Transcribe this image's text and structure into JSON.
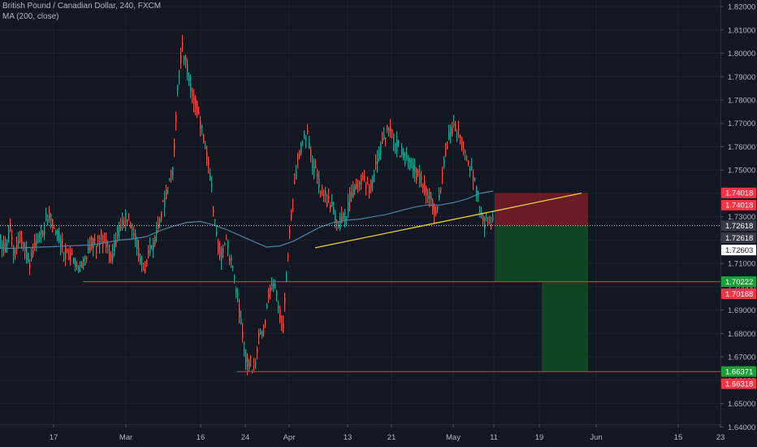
{
  "header": {
    "title": "British Pound / Canadian Dollar, 240, FXCM",
    "indicator": "MA (200, close)"
  },
  "colors": {
    "background": "#131722",
    "grid": "#1e2230",
    "up_candle": "#26a69a",
    "down_candle": "#ef5350",
    "ma_line": "#4e7fa6",
    "trendline": "#e8d13b",
    "horizontal_level": "#f23645",
    "stop_zone": "#7a1c26",
    "target_zone": "#0f4a22",
    "axis_text": "#b2b5be",
    "label_red": "#f23645",
    "label_green": "#1e9e3a",
    "label_white": "#ffffff",
    "label_dark": "#363a45"
  },
  "chart_data": {
    "type": "candlestick",
    "symbol": "GBPCAD",
    "ylim": [
      1.6335,
      1.8235
    ],
    "yticks": [
      "1.82000",
      "1.81000",
      "1.80000",
      "1.79000",
      "1.78000",
      "1.77000",
      "1.76000",
      "1.75000",
      "1.74000",
      "1.73000",
      "1.72000",
      "1.71000",
      "1.70000",
      "1.69000",
      "1.68000",
      "1.67000",
      "1.66000",
      "1.65000",
      "1.64000"
    ],
    "xlabels": [
      "17",
      "Mar",
      "16",
      "24",
      "Apr",
      "13",
      "21",
      "May",
      "11",
      "19",
      "Jun",
      "15",
      "23"
    ],
    "ohlc_path": [
      1.72,
      1.716,
      1.725,
      1.713,
      1.721,
      1.717,
      1.71,
      1.716,
      1.722,
      1.724,
      1.731,
      1.726,
      1.722,
      1.718,
      1.712,
      1.712,
      1.706,
      1.71,
      1.714,
      1.719,
      1.717,
      1.722,
      1.718,
      1.712,
      1.719,
      1.727,
      1.731,
      1.727,
      1.722,
      1.714,
      1.707,
      1.716,
      1.718,
      1.726,
      1.735,
      1.741,
      1.75,
      1.785,
      1.802,
      1.793,
      1.784,
      1.777,
      1.768,
      1.758,
      1.745,
      1.722,
      1.713,
      1.721,
      1.712,
      1.703,
      1.688,
      1.672,
      1.665,
      1.666,
      1.678,
      1.683,
      1.695,
      1.701,
      1.693,
      1.681,
      1.713,
      1.736,
      1.752,
      1.762,
      1.766,
      1.756,
      1.748,
      1.742,
      1.738,
      1.735,
      1.73,
      1.727,
      1.729,
      1.738,
      1.742,
      1.746,
      1.745,
      1.742,
      1.747,
      1.757,
      1.764,
      1.768,
      1.765,
      1.76,
      1.757,
      1.754,
      1.752,
      1.748,
      1.744,
      1.741,
      1.736,
      1.731,
      1.742,
      1.757,
      1.767,
      1.767,
      1.764,
      1.759,
      1.753,
      1.746,
      1.737,
      1.726,
      1.727,
      1.731
    ],
    "ma_200": [
      1.7165,
      1.7165,
      1.7168,
      1.717,
      1.7172,
      1.7175,
      1.7177,
      1.718,
      1.719,
      1.72,
      1.7205,
      1.7215,
      1.724,
      1.726,
      1.7275,
      1.728,
      1.7265,
      1.7245,
      1.722,
      1.7195,
      1.717,
      1.7175,
      1.7195,
      1.7225,
      1.7255,
      1.7275,
      1.7285,
      1.729,
      1.73,
      1.731,
      1.7325,
      1.734,
      1.735,
      1.735,
      1.736,
      1.7375,
      1.74,
      1.741
    ],
    "trendline": {
      "start": 1.7167,
      "end": 1.7401
    },
    "levels": [
      1.7022,
      1.6637
    ],
    "current_price": 1.72618,
    "price_labels": [
      {
        "text": "1.74018",
        "value": 1.74018,
        "style": "red"
      },
      {
        "text": "1.74018",
        "value": 1.74018,
        "style": "red"
      },
      {
        "text": "1.72618",
        "value": 1.72618,
        "style": "dark"
      },
      {
        "text": "1.72618",
        "value": 1.72618,
        "style": "dark"
      },
      {
        "text": "1.72603",
        "value": 1.72603,
        "style": "white"
      },
      {
        "text": "1.70222",
        "value": 1.70222,
        "style": "green"
      },
      {
        "text": "1.70168",
        "value": 1.70168,
        "style": "red"
      },
      {
        "text": "1.66371",
        "value": 1.66371,
        "style": "green"
      },
      {
        "text": "1.66318",
        "value": 1.66318,
        "style": "red"
      }
    ],
    "position": {
      "entry": 1.7262,
      "stop": 1.7402,
      "target_1": 1.7022,
      "target_2": 1.6637
    }
  }
}
